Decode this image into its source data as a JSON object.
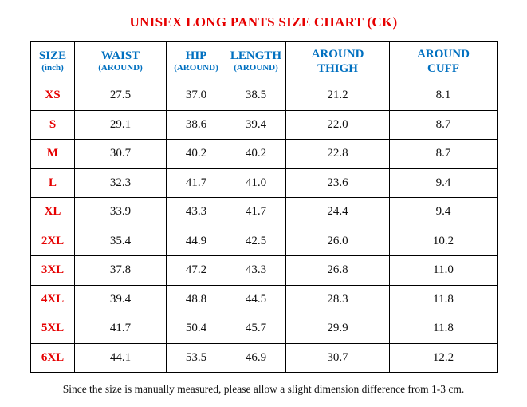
{
  "title": "UNISEX LONG PANTS SIZE CHART (CK)",
  "footer_note": "Since the size is manually measured, please allow a slight dimension difference from 1-3 cm.",
  "colors": {
    "title_red": "#e60000",
    "header_blue": "#0070c0",
    "size_label_red": "#e60000",
    "value_black": "#111111",
    "border_black": "#000000",
    "background_white": "#ffffff"
  },
  "chart_data": {
    "type": "table",
    "title": "UNISEX LONG PANTS SIZE CHART (CK)",
    "unit": "inch",
    "columns": [
      {
        "line1": "SIZE",
        "line2": "(inch)"
      },
      {
        "line1": "WAIST",
        "line2": "(AROUND)"
      },
      {
        "line1": "HIP",
        "line2": "(AROUND)"
      },
      {
        "line1": "LENGTH",
        "line2": "(AROUND)"
      },
      {
        "line1": "AROUND",
        "line2": "THIGH"
      },
      {
        "line1": "AROUND",
        "line2": "CUFF"
      }
    ],
    "rows": [
      {
        "size": "XS",
        "values": [
          "27.5",
          "37.0",
          "38.5",
          "21.2",
          "8.1"
        ]
      },
      {
        "size": "S",
        "values": [
          "29.1",
          "38.6",
          "39.4",
          "22.0",
          "8.7"
        ]
      },
      {
        "size": "M",
        "values": [
          "30.7",
          "40.2",
          "40.2",
          "22.8",
          "8.7"
        ]
      },
      {
        "size": "L",
        "values": [
          "32.3",
          "41.7",
          "41.0",
          "23.6",
          "9.4"
        ]
      },
      {
        "size": "XL",
        "values": [
          "33.9",
          "43.3",
          "41.7",
          "24.4",
          "9.4"
        ]
      },
      {
        "size": "2XL",
        "values": [
          "35.4",
          "44.9",
          "42.5",
          "26.0",
          "10.2"
        ]
      },
      {
        "size": "3XL",
        "values": [
          "37.8",
          "47.2",
          "43.3",
          "26.8",
          "11.0"
        ]
      },
      {
        "size": "4XL",
        "values": [
          "39.4",
          "48.8",
          "44.5",
          "28.3",
          "11.8"
        ]
      },
      {
        "size": "5XL",
        "values": [
          "41.7",
          "50.4",
          "45.7",
          "29.9",
          "11.8"
        ]
      },
      {
        "size": "6XL",
        "values": [
          "44.1",
          "53.5",
          "46.9",
          "30.7",
          "12.2"
        ]
      }
    ]
  }
}
